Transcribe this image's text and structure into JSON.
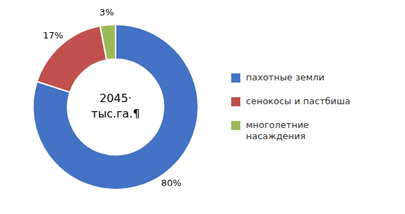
{
  "chart_data": {
    "type": "doughnut",
    "categories": [
      "пахотные земли",
      "сенокосы и пастбиша",
      "многолетние\nнасаждения"
    ],
    "values": [
      80,
      17,
      3
    ],
    "value_labels": [
      "80%",
      "17%",
      "3%"
    ],
    "data_labels": true,
    "colors": [
      "#4472c4",
      "#c0504d",
      "#9bbb59"
    ],
    "legend": "right",
    "annotations": [
      "2045·",
      "тыс.га.¶"
    ]
  }
}
